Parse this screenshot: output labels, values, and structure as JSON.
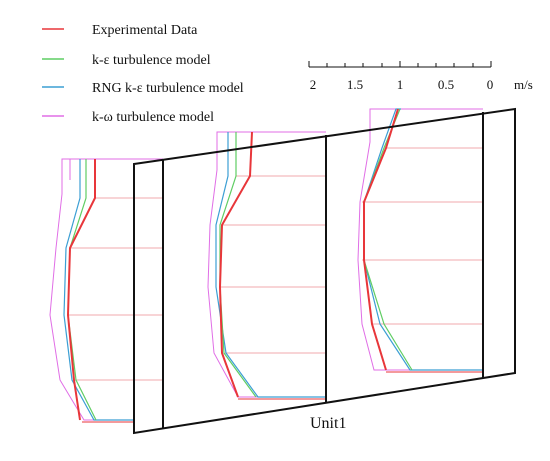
{
  "legend": {
    "items": [
      {
        "key": "exp",
        "label": "Experimental Data",
        "color": "#e8363a"
      },
      {
        "key": "ke",
        "label": "k-ε turbulence model",
        "color": "#5fcd63"
      },
      {
        "key": "rng",
        "label": "RNG k-ε turbulence model",
        "color": "#3c9fd4"
      },
      {
        "key": "kw",
        "label": "k-ω turbulence model",
        "color": "#e06ee6"
      }
    ]
  },
  "scale": {
    "ticks": [
      "2",
      "1.5",
      "1",
      "0.5",
      "0"
    ],
    "unit": "m/s"
  },
  "unit_label": "Unit1",
  "colors": {
    "frame": "#111111",
    "grid": "#f2a8ac",
    "exp": "#e8363a",
    "ke": "#5fcd63",
    "rng": "#3c9fd4",
    "kw": "#e06ee6"
  }
}
